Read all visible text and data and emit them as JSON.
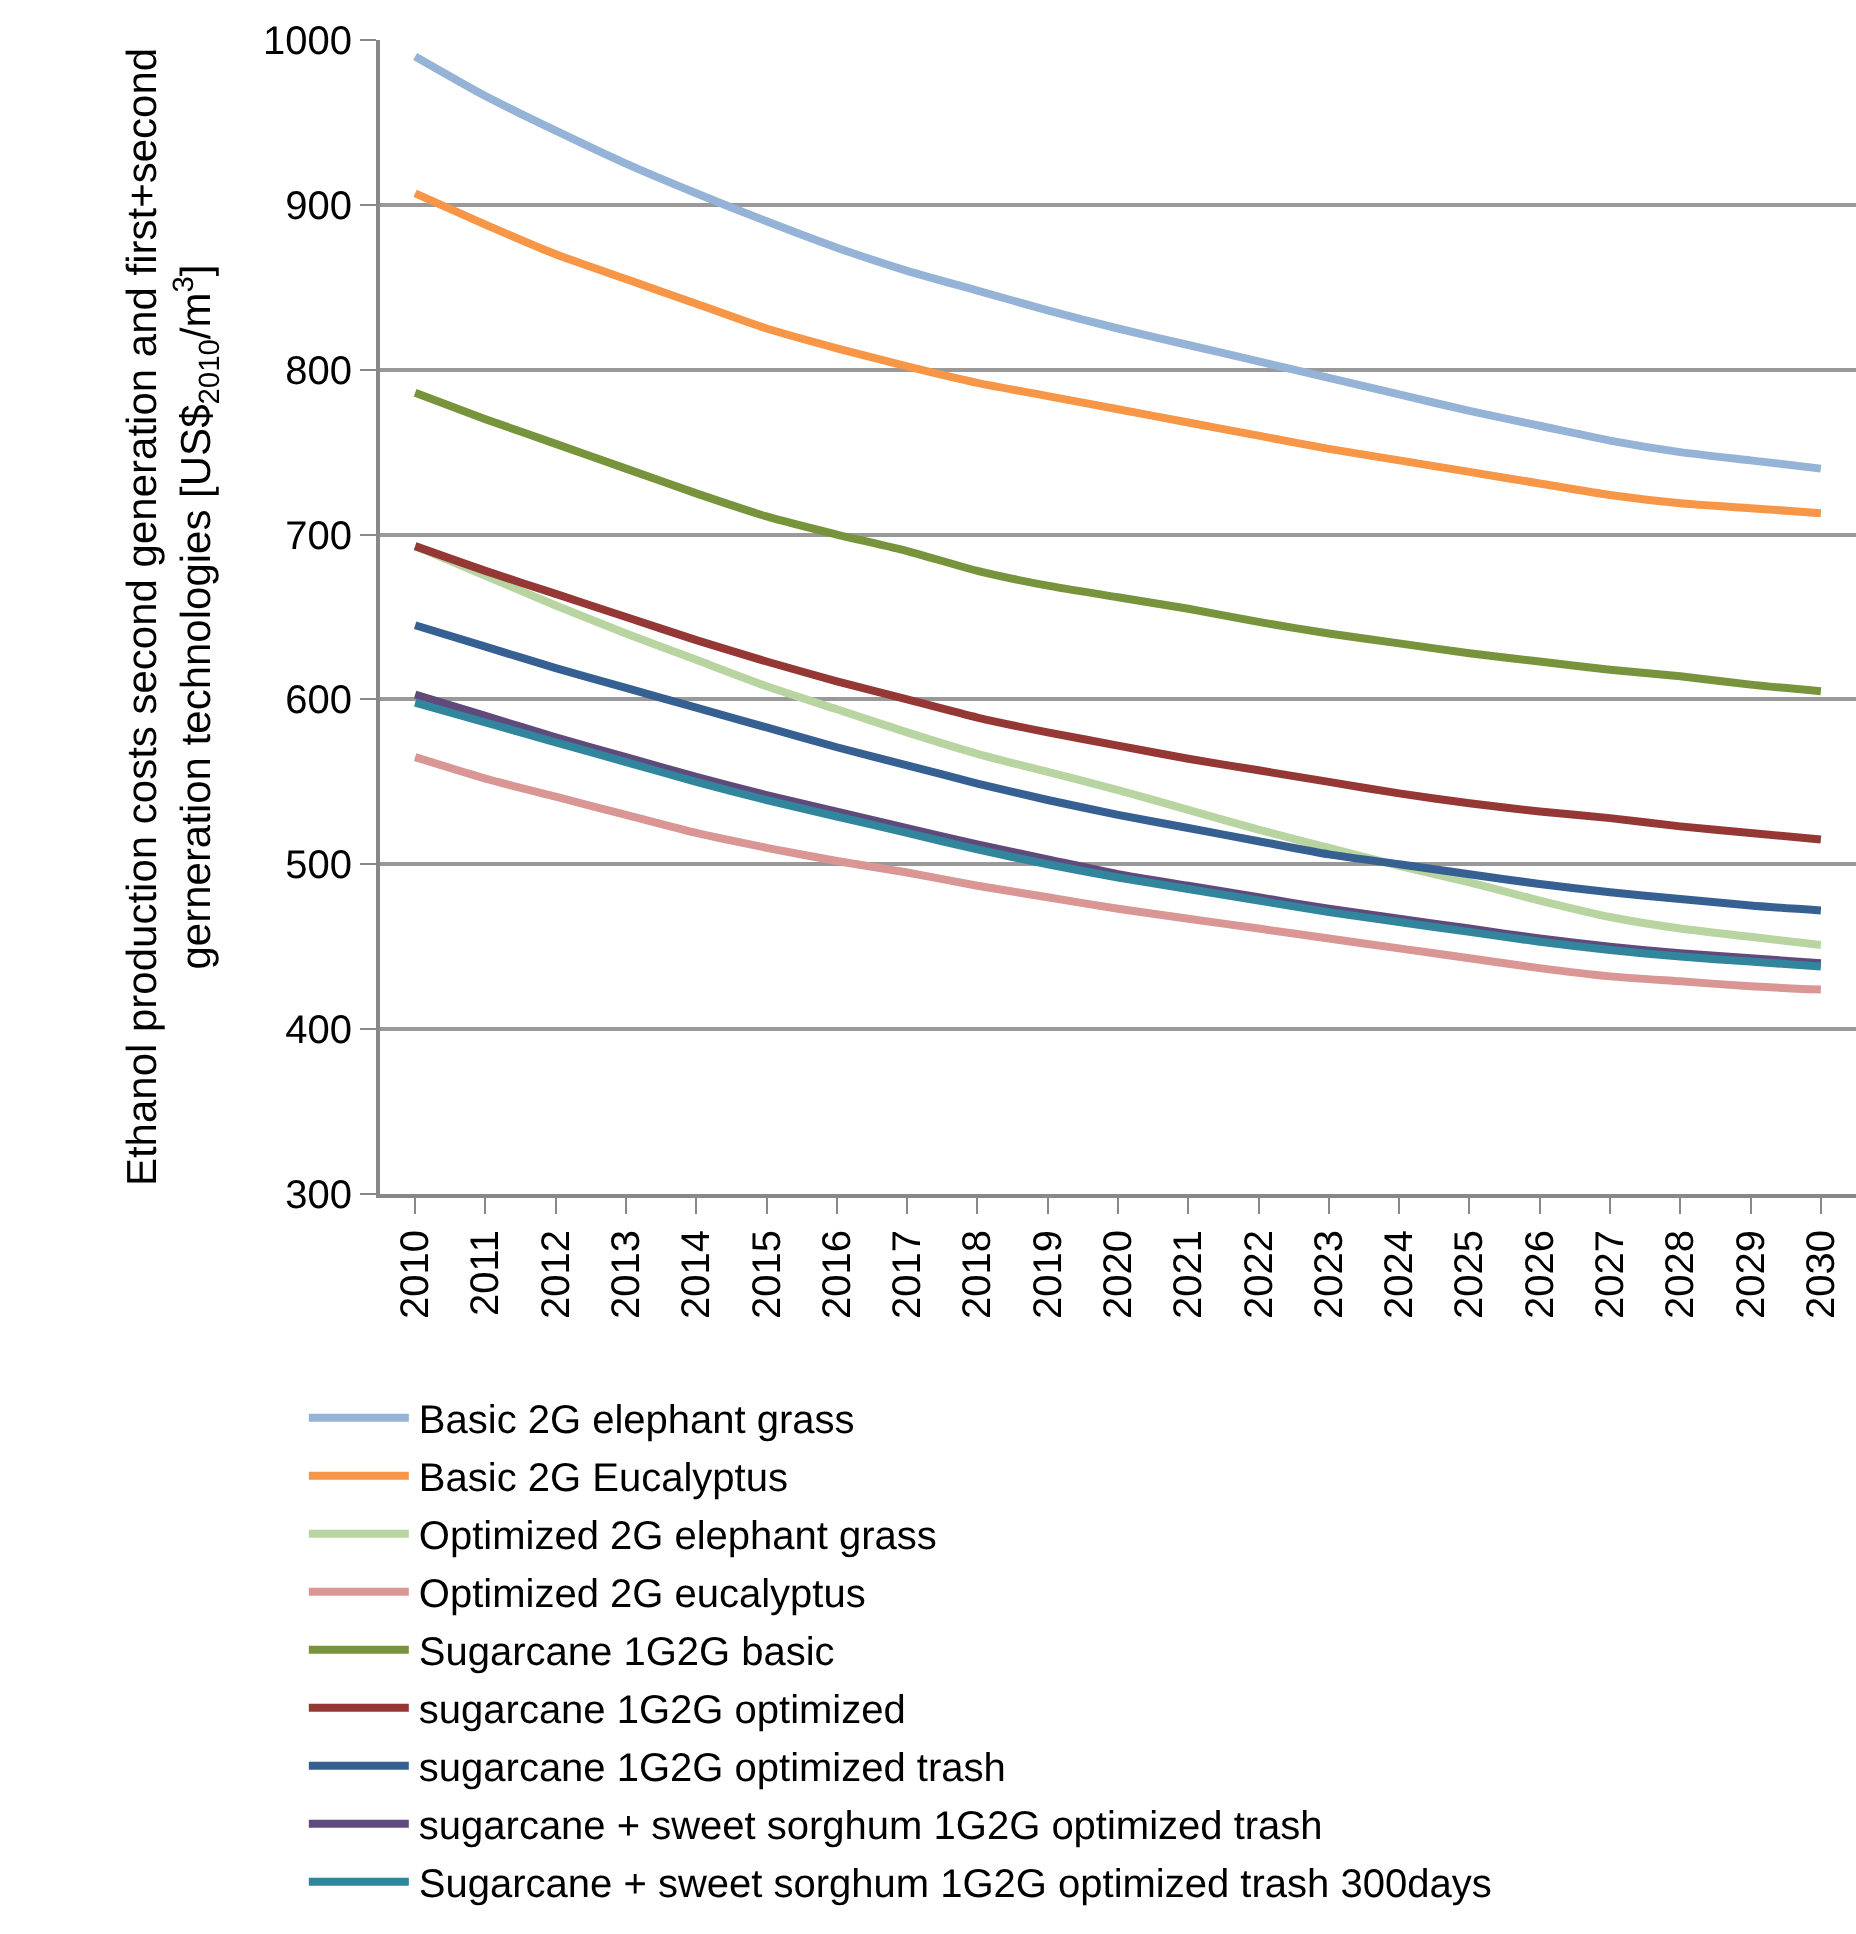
{
  "chart_data": {
    "type": "line",
    "ylabel": "Ethanol production costs second generation and first+second\ngerneration technologies [US$$_{2010}$/m$^{3}$]",
    "categories": [
      "2010",
      "2011",
      "2012",
      "2013",
      "2014",
      "2015",
      "2016",
      "2017",
      "2018",
      "2019",
      "2020",
      "2021",
      "2022",
      "2023",
      "2024",
      "2025",
      "2026",
      "2027",
      "2028",
      "2029",
      "2030"
    ],
    "ylim": [
      300,
      1000
    ],
    "yticks": [
      300,
      400,
      500,
      600,
      700,
      800,
      900,
      1000
    ],
    "grid": "y",
    "legend": "bottom",
    "marker": "none",
    "line_style": "solid",
    "series": [
      {
        "name": "Basic 2G elephant grass",
        "color": "#95b3d7",
        "values": [
          990,
          966,
          945,
          925,
          907,
          890,
          874,
          860,
          848,
          836,
          825,
          815,
          805,
          795,
          785,
          775,
          766,
          757,
          750,
          745,
          740
        ]
      },
      {
        "name": "Basic 2G Eucalyptus",
        "color": "#f79646",
        "values": [
          907,
          888,
          870,
          855,
          840,
          825,
          813,
          802,
          792,
          784,
          776,
          768,
          760,
          752,
          745,
          738,
          731,
          724,
          719,
          716,
          713
        ]
      },
      {
        "name": "Optimized 2G elephant grass",
        "color": "#b8d4a0",
        "values": [
          693,
          675,
          657,
          640,
          624,
          608,
          594,
          580,
          567,
          556,
          545,
          533,
          521,
          510,
          499,
          489,
          478,
          468,
          461,
          456,
          451
        ]
      },
      {
        "name": "Optimized 2G eucalyptus",
        "color": "#d99694",
        "values": [
          565,
          552,
          541,
          530,
          519,
          510,
          502,
          495,
          487,
          480,
          473,
          467,
          461,
          455,
          449,
          443,
          437,
          432,
          429,
          426,
          424
        ]
      },
      {
        "name": "Sugarcane 1G2G basic",
        "color": "#77933c",
        "values": [
          786,
          770,
          755,
          740,
          725,
          711,
          700,
          690,
          678,
          669,
          662,
          655,
          647,
          640,
          634,
          628,
          623,
          618,
          614,
          609,
          605
        ]
      },
      {
        "name": "sugarcane 1G2G optimized",
        "color": "#953735",
        "values": [
          693,
          678,
          664,
          650,
          636,
          623,
          611,
          600,
          589,
          580,
          572,
          564,
          557,
          550,
          543,
          537,
          532,
          528,
          523,
          519,
          515
        ]
      },
      {
        "name": "sugarcane 1G2G optimized trash",
        "color": "#376092",
        "values": [
          645,
          632,
          619,
          607,
          595,
          583,
          571,
          560,
          549,
          539,
          530,
          522,
          514,
          506,
          500,
          494,
          488,
          483,
          479,
          475,
          472
        ]
      },
      {
        "name": "sugarcane + sweet sorghum 1G2G optimized trash",
        "color": "#604a7b",
        "values": [
          603,
          590,
          577,
          565,
          553,
          542,
          532,
          522,
          512,
          503,
          494,
          487,
          480,
          473,
          467,
          461,
          455,
          450,
          446,
          443,
          440
        ]
      },
      {
        "name": "Sugarcane + sweet sorghum 1G2G optimized trash 300days",
        "color": "#31859c",
        "values": [
          598,
          586,
          574,
          562,
          550,
          539,
          529,
          519,
          509,
          500,
          492,
          485,
          478,
          471,
          465,
          459,
          453,
          448,
          444,
          441,
          438
        ]
      }
    ]
  }
}
